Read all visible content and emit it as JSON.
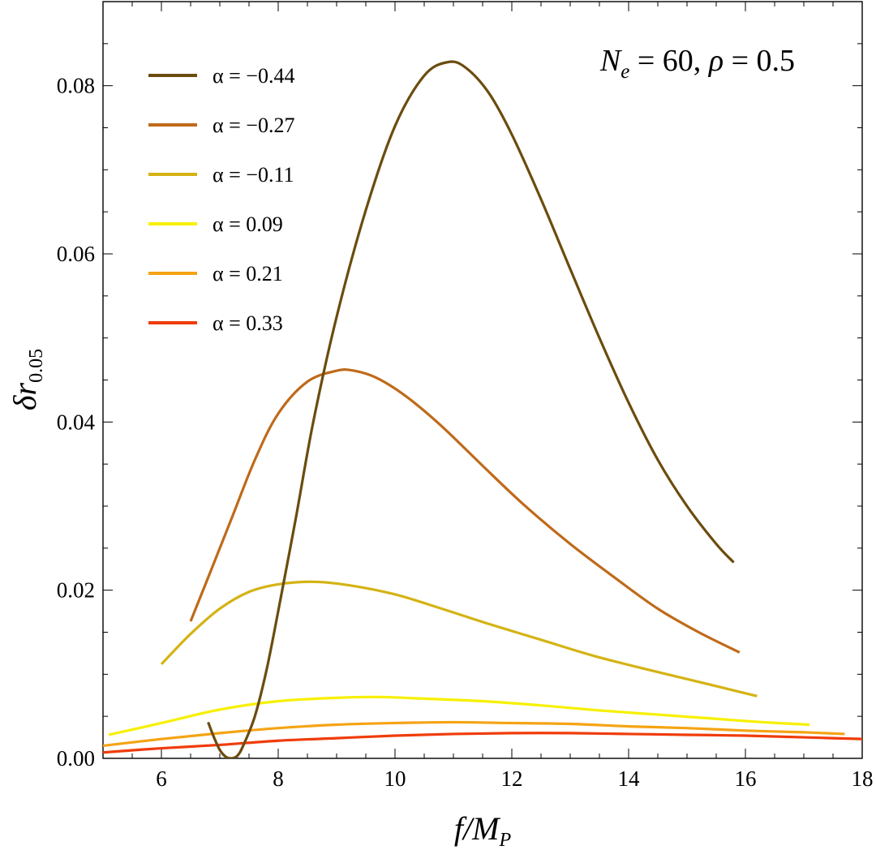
{
  "chart_data": {
    "type": "line",
    "title": "",
    "annotation": {
      "lhs1": "N",
      "lhs1_sub": "e",
      "eq1": " = 60, ",
      "lhs2": "ρ",
      "eq2": " = 0.5"
    },
    "xlabel": "f/M",
    "xlabel_sub": "P",
    "ylabel": "δr",
    "ylabel_sub": "0.05",
    "xlim": [
      5,
      18
    ],
    "ylim": [
      0,
      0.09
    ],
    "x_ticks": [
      6,
      8,
      10,
      12,
      14,
      16,
      18
    ],
    "x_tick_labels": [
      "6",
      "8",
      "10",
      "12",
      "14",
      "16",
      "18"
    ],
    "y_ticks": [
      0.0,
      0.02,
      0.04,
      0.06,
      0.08
    ],
    "y_tick_labels": [
      "0.00",
      "0.02",
      "0.04",
      "0.06",
      "0.08"
    ],
    "legend_position": "top-left",
    "series": [
      {
        "name": "α = −0.44",
        "color": "#6b4c0e",
        "points": [
          [
            6.8,
            0.0043
          ],
          [
            6.9,
            0.0025
          ],
          [
            7.0,
            0.001
          ],
          [
            7.1,
            0.0002
          ],
          [
            7.2,
            0.0
          ],
          [
            7.3,
            0.0003
          ],
          [
            7.4,
            0.0015
          ],
          [
            7.6,
            0.005
          ],
          [
            7.8,
            0.0105
          ],
          [
            8.0,
            0.0175
          ],
          [
            8.3,
            0.0285
          ],
          [
            8.6,
            0.04
          ],
          [
            9.0,
            0.0525
          ],
          [
            9.5,
            0.0652
          ],
          [
            10.0,
            0.0752
          ],
          [
            10.5,
            0.0812
          ],
          [
            10.9,
            0.0828
          ],
          [
            11.2,
            0.0822
          ],
          [
            11.6,
            0.0792
          ],
          [
            12.0,
            0.0742
          ],
          [
            12.5,
            0.0665
          ],
          [
            13.0,
            0.0582
          ],
          [
            13.5,
            0.05
          ],
          [
            14.0,
            0.0423
          ],
          [
            14.5,
            0.0355
          ],
          [
            15.0,
            0.03
          ],
          [
            15.5,
            0.0255
          ],
          [
            15.8,
            0.0233
          ]
        ]
      },
      {
        "name": "α = −0.27",
        "color": "#bf6a1a",
        "points": [
          [
            6.5,
            0.0163
          ],
          [
            6.8,
            0.0215
          ],
          [
            7.2,
            0.0285
          ],
          [
            7.6,
            0.0355
          ],
          [
            8.0,
            0.041
          ],
          [
            8.5,
            0.0448
          ],
          [
            9.0,
            0.0461
          ],
          [
            9.3,
            0.0461
          ],
          [
            9.7,
            0.0452
          ],
          [
            10.2,
            0.043
          ],
          [
            10.8,
            0.0395
          ],
          [
            11.5,
            0.0348
          ],
          [
            12.2,
            0.0302
          ],
          [
            13.0,
            0.0255
          ],
          [
            13.8,
            0.0213
          ],
          [
            14.5,
            0.0178
          ],
          [
            15.2,
            0.015
          ],
          [
            15.9,
            0.0126
          ]
        ]
      },
      {
        "name": "α = −0.11",
        "color": "#d4b314",
        "points": [
          [
            6.0,
            0.0112
          ],
          [
            6.5,
            0.0148
          ],
          [
            7.0,
            0.0178
          ],
          [
            7.5,
            0.0198
          ],
          [
            8.0,
            0.0207
          ],
          [
            8.6,
            0.021
          ],
          [
            9.2,
            0.0206
          ],
          [
            10.0,
            0.0195
          ],
          [
            10.8,
            0.0178
          ],
          [
            11.6,
            0.016
          ],
          [
            12.5,
            0.0141
          ],
          [
            13.4,
            0.0122
          ],
          [
            14.3,
            0.0106
          ],
          [
            15.2,
            0.0091
          ],
          [
            16.2,
            0.0074
          ]
        ]
      },
      {
        "name": "α = 0.09",
        "color": "#f7f000",
        "points": [
          [
            5.1,
            0.0028
          ],
          [
            6.0,
            0.0042
          ],
          [
            7.0,
            0.0058
          ],
          [
            8.0,
            0.0068
          ],
          [
            9.0,
            0.0072
          ],
          [
            9.7,
            0.0073
          ],
          [
            10.5,
            0.0071
          ],
          [
            11.5,
            0.0068
          ],
          [
            12.5,
            0.0063
          ],
          [
            13.5,
            0.0057
          ],
          [
            14.5,
            0.0052
          ],
          [
            15.5,
            0.0047
          ],
          [
            16.3,
            0.0043
          ],
          [
            17.1,
            0.004
          ]
        ]
      },
      {
        "name": "α = 0.21",
        "color": "#f5a313",
        "points": [
          [
            5.0,
            0.0015
          ],
          [
            6.0,
            0.0023
          ],
          [
            7.0,
            0.003
          ],
          [
            8.0,
            0.0036
          ],
          [
            9.0,
            0.004
          ],
          [
            10.0,
            0.0042
          ],
          [
            11.0,
            0.0043
          ],
          [
            12.0,
            0.0042
          ],
          [
            13.0,
            0.0041
          ],
          [
            14.0,
            0.0038
          ],
          [
            15.0,
            0.0036
          ],
          [
            16.0,
            0.0033
          ],
          [
            17.0,
            0.0031
          ],
          [
            17.7,
            0.0029
          ]
        ]
      },
      {
        "name": "α = 0.33",
        "color": "#f03c0a",
        "points": [
          [
            5.0,
            0.0007
          ],
          [
            6.0,
            0.0012
          ],
          [
            7.0,
            0.0016
          ],
          [
            8.0,
            0.0021
          ],
          [
            9.0,
            0.0024
          ],
          [
            10.0,
            0.0027
          ],
          [
            11.0,
            0.0029
          ],
          [
            12.0,
            0.003
          ],
          [
            13.0,
            0.003
          ],
          [
            14.0,
            0.0029
          ],
          [
            15.0,
            0.0028
          ],
          [
            16.0,
            0.0027
          ],
          [
            17.0,
            0.0025
          ],
          [
            18.0,
            0.0023
          ]
        ]
      }
    ]
  }
}
